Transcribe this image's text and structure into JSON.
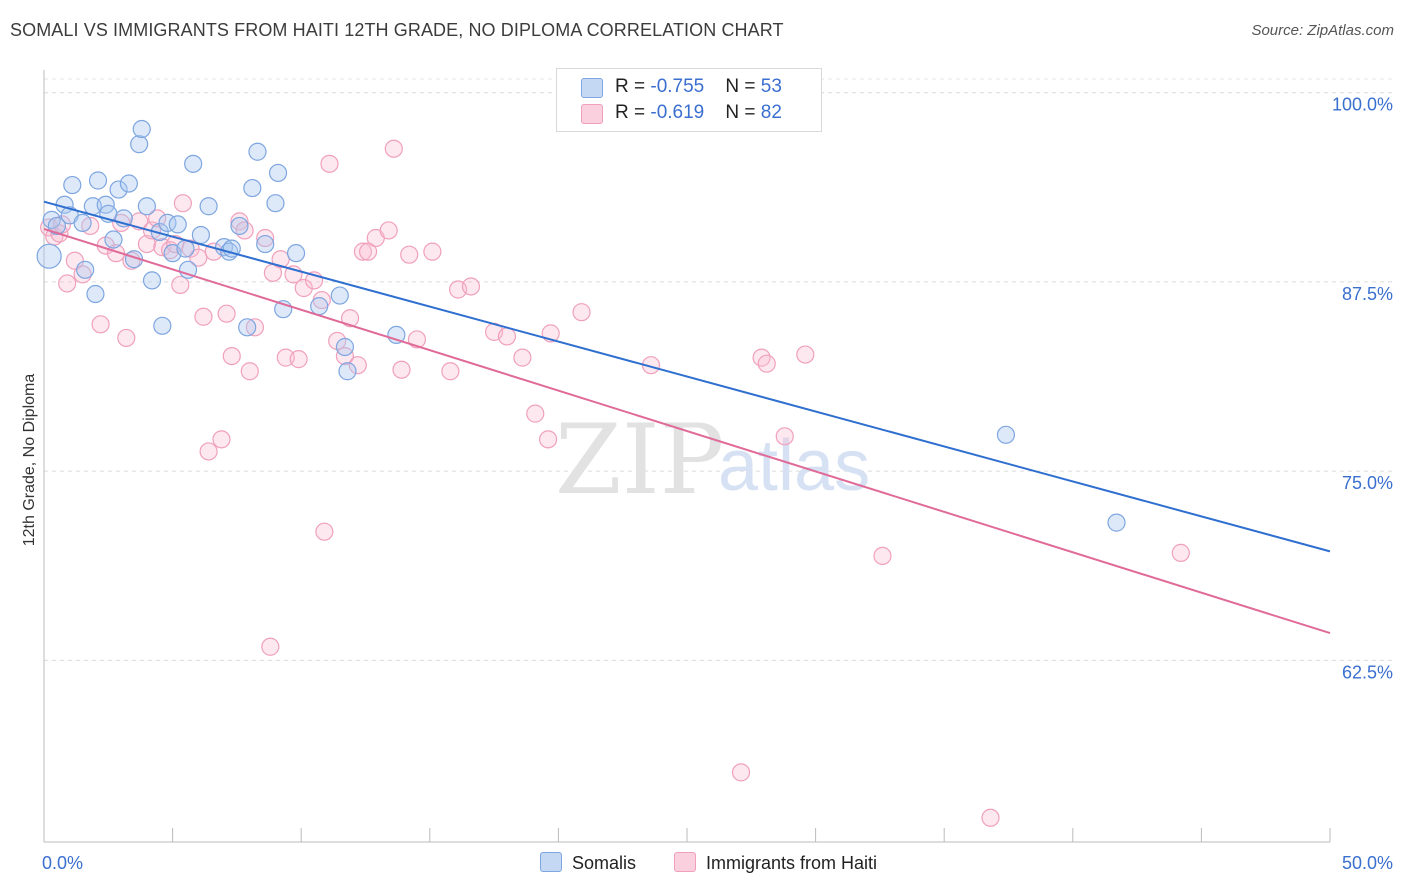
{
  "title": "SOMALI VS IMMIGRANTS FROM HAITI 12TH GRADE, NO DIPLOMA CORRELATION CHART",
  "source": "Source: ZipAtlas.com",
  "watermark": {
    "zip": "ZIP",
    "atlas": "atlas"
  },
  "legend": {
    "somali": {
      "r_label": "R = ",
      "r_value": "-0.755",
      "n_label": "N = ",
      "n_value": "53"
    },
    "haiti": {
      "r_label": "R = ",
      "r_value": "-0.619",
      "n_label": "N = ",
      "n_value": "82"
    }
  },
  "bottom_legend": {
    "somalis": "Somalis",
    "haiti": "Immigrants from Haiti"
  },
  "chart_data": {
    "type": "scatter",
    "xlabel": "",
    "ylabel": "12th Grade, No Diploma",
    "xlim": [
      0,
      50
    ],
    "ylim": [
      50.5,
      101.5
    ],
    "x_tick_labels": {
      "left": "0.0%",
      "right": "50.0%"
    },
    "y_ticks": [
      100,
      87.5,
      75,
      62.5
    ],
    "y_tick_labels": [
      "100.0%",
      "87.5%",
      "75.0%",
      "62.5%"
    ],
    "colors": {
      "somali": "#7ea6e0",
      "somali_line": "#2f6fcf",
      "haiti": "#f0a0bc",
      "haiti_line": "#e06a98",
      "tick_label": "#3a6fd0"
    },
    "series": [
      {
        "name": "Somalis",
        "trend": {
          "x": [
            0,
            50
          ],
          "y": [
            92.8,
            69.7
          ]
        },
        "points": [
          [
            0.2,
            89.2
          ],
          [
            0.3,
            91.6
          ],
          [
            0.5,
            91.2
          ],
          [
            0.8,
            92.6
          ],
          [
            1.0,
            91.9
          ],
          [
            1.1,
            93.9
          ],
          [
            1.5,
            91.4
          ],
          [
            1.6,
            88.3
          ],
          [
            1.9,
            92.5
          ],
          [
            2.0,
            86.7
          ],
          [
            2.1,
            94.2
          ],
          [
            2.4,
            92.6
          ],
          [
            2.5,
            92.0
          ],
          [
            2.7,
            90.3
          ],
          [
            2.9,
            93.6
          ],
          [
            3.1,
            91.7
          ],
          [
            3.3,
            94.0
          ],
          [
            3.5,
            89.0
          ],
          [
            3.7,
            96.6
          ],
          [
            3.8,
            97.6
          ],
          [
            4.0,
            92.5
          ],
          [
            4.2,
            87.6
          ],
          [
            4.5,
            90.8
          ],
          [
            4.6,
            84.6
          ],
          [
            4.8,
            91.4
          ],
          [
            5.0,
            89.4
          ],
          [
            5.2,
            91.3
          ],
          [
            5.5,
            89.7
          ],
          [
            5.6,
            88.3
          ],
          [
            5.8,
            95.3
          ],
          [
            6.1,
            90.6
          ],
          [
            6.4,
            92.5
          ],
          [
            7.0,
            89.8
          ],
          [
            7.2,
            89.5
          ],
          [
            7.3,
            89.7
          ],
          [
            7.6,
            91.2
          ],
          [
            7.9,
            84.5
          ],
          [
            8.1,
            93.7
          ],
          [
            8.3,
            96.1
          ],
          [
            8.6,
            90.0
          ],
          [
            9.0,
            92.7
          ],
          [
            9.1,
            94.7
          ],
          [
            9.3,
            85.7
          ],
          [
            9.8,
            89.4
          ],
          [
            10.7,
            85.9
          ],
          [
            11.5,
            86.6
          ],
          [
            11.7,
            83.2
          ],
          [
            11.8,
            81.6
          ],
          [
            13.7,
            84.0
          ],
          [
            37.4,
            77.4
          ],
          [
            41.7,
            71.6
          ]
        ]
      },
      {
        "name": "Immigrants from Haiti",
        "trend": {
          "x": [
            0,
            50
          ],
          "y": [
            91.0,
            64.3
          ]
        },
        "points": [
          [
            0.2,
            91.1
          ],
          [
            0.4,
            90.5
          ],
          [
            0.6,
            90.7
          ],
          [
            0.7,
            91.3
          ],
          [
            0.9,
            87.4
          ],
          [
            1.2,
            88.9
          ],
          [
            1.5,
            88.0
          ],
          [
            1.8,
            91.2
          ],
          [
            2.2,
            84.7
          ],
          [
            2.4,
            89.9
          ],
          [
            2.8,
            89.4
          ],
          [
            3.0,
            91.4
          ],
          [
            3.2,
            83.8
          ],
          [
            3.4,
            88.9
          ],
          [
            3.7,
            91.5
          ],
          [
            4.0,
            90.0
          ],
          [
            4.2,
            90.9
          ],
          [
            4.4,
            91.7
          ],
          [
            4.6,
            89.8
          ],
          [
            4.9,
            89.6
          ],
          [
            5.1,
            90.0
          ],
          [
            5.3,
            87.3
          ],
          [
            5.4,
            92.7
          ],
          [
            5.7,
            89.7
          ],
          [
            6.0,
            89.1
          ],
          [
            6.2,
            85.2
          ],
          [
            6.4,
            76.3
          ],
          [
            6.6,
            89.5
          ],
          [
            6.9,
            77.1
          ],
          [
            7.1,
            85.4
          ],
          [
            7.3,
            82.6
          ],
          [
            7.6,
            91.5
          ],
          [
            7.8,
            90.9
          ],
          [
            8.0,
            81.6
          ],
          [
            8.2,
            84.5
          ],
          [
            8.6,
            90.4
          ],
          [
            8.9,
            88.1
          ],
          [
            9.2,
            89.0
          ],
          [
            9.4,
            82.5
          ],
          [
            9.7,
            88.0
          ],
          [
            9.9,
            82.4
          ],
          [
            10.1,
            87.1
          ],
          [
            10.5,
            87.6
          ],
          [
            10.8,
            86.3
          ],
          [
            10.9,
            71.0
          ],
          [
            11.1,
            95.3
          ],
          [
            11.4,
            83.6
          ],
          [
            11.7,
            82.6
          ],
          [
            11.9,
            85.1
          ],
          [
            12.2,
            82.0
          ],
          [
            12.4,
            89.5
          ],
          [
            12.6,
            89.5
          ],
          [
            12.9,
            90.4
          ],
          [
            13.4,
            90.9
          ],
          [
            13.6,
            96.3
          ],
          [
            13.9,
            81.7
          ],
          [
            14.2,
            89.3
          ],
          [
            14.5,
            83.7
          ],
          [
            15.1,
            89.5
          ],
          [
            15.8,
            81.6
          ],
          [
            16.1,
            87.0
          ],
          [
            16.6,
            87.2
          ],
          [
            17.5,
            84.2
          ],
          [
            18.0,
            83.9
          ],
          [
            18.6,
            82.5
          ],
          [
            19.1,
            78.8
          ],
          [
            19.6,
            77.1
          ],
          [
            19.7,
            84.1
          ],
          [
            20.9,
            85.5
          ],
          [
            23.6,
            82.0
          ],
          [
            27.1,
            55.1
          ],
          [
            27.9,
            82.5
          ],
          [
            28.1,
            82.1
          ],
          [
            28.8,
            77.3
          ],
          [
            29.6,
            82.7
          ],
          [
            32.6,
            69.4
          ],
          [
            36.8,
            52.1
          ],
          [
            44.2,
            69.6
          ],
          [
            8.8,
            63.4
          ]
        ]
      }
    ]
  }
}
